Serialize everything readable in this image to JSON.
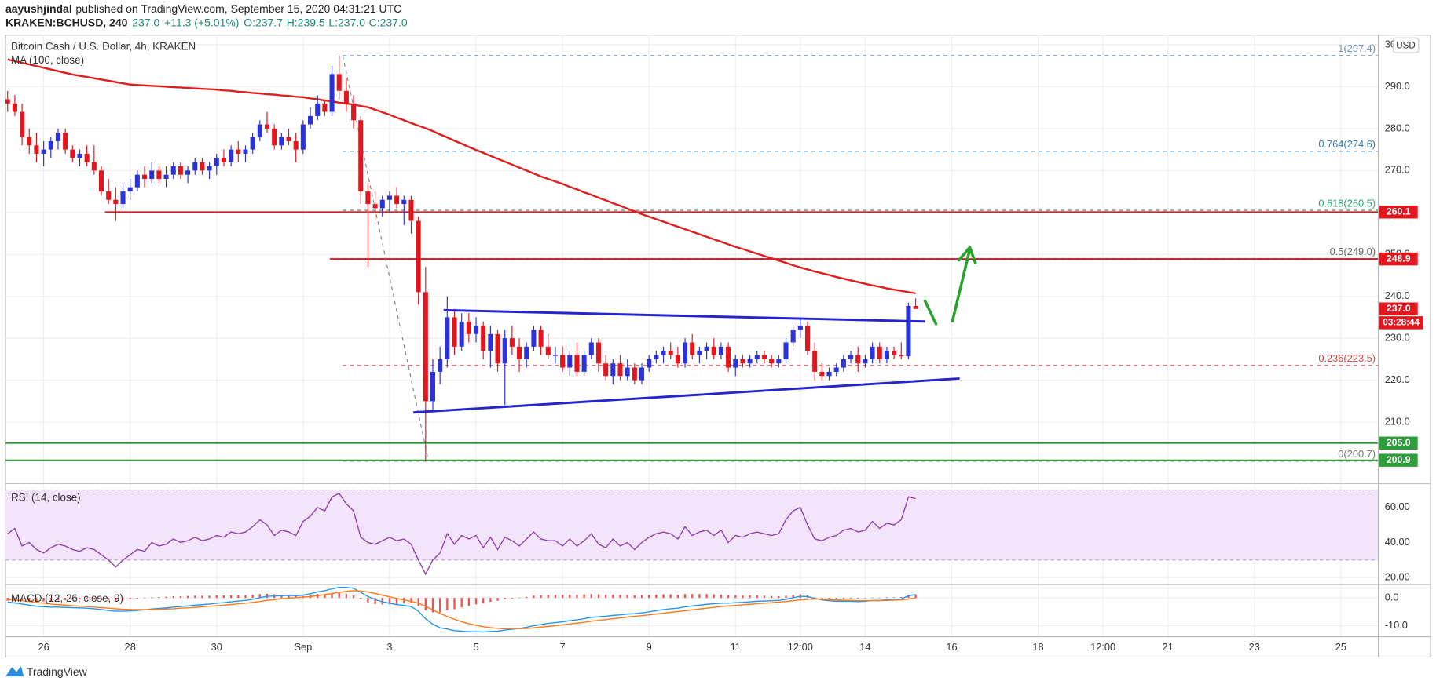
{
  "header": {
    "author": "aayushjindal",
    "published": "published on TradingView.com, September 15, 2020 04:31:21 UTC",
    "symbol": "KRAKEN:BCHUSD, 240",
    "price": "237.0",
    "change": "+11.3 (+5.01%)",
    "ohlc": [
      "O:237.7",
      "H:239.5",
      "L:237.0",
      "C:237.0"
    ]
  },
  "brand": "TradingView",
  "chart_data": {
    "type": "candlestick",
    "title": "Bitcoin Cash / U.S. Dollar, 4h, KRAKEN",
    "currency": "USD",
    "up_color": "#2b33d6",
    "down_color": "#e3161d",
    "grid": true,
    "xlim": [
      -0.3,
      190.2
    ],
    "xticks": [
      {
        "value": 5,
        "label": "26"
      },
      {
        "value": 17,
        "label": "28"
      },
      {
        "value": 29,
        "label": "30"
      },
      {
        "value": 41,
        "label": "Sep"
      },
      {
        "value": 53,
        "label": "3"
      },
      {
        "value": 65,
        "label": "5"
      },
      {
        "value": 77,
        "label": "7"
      },
      {
        "value": 89,
        "label": "9"
      },
      {
        "value": 101,
        "label": "11"
      },
      {
        "value": 110,
        "label": "12:00"
      },
      {
        "value": 119,
        "label": "14"
      },
      {
        "value": 131,
        "label": "16"
      },
      {
        "value": 143,
        "label": "18"
      },
      {
        "value": 152,
        "label": "12:00"
      },
      {
        "value": 161,
        "label": "21"
      },
      {
        "value": 173,
        "label": "23"
      },
      {
        "value": 185,
        "label": "25"
      }
    ],
    "ylim": [
      195.8,
      302.3
    ],
    "yticks": [
      {
        "value": 210,
        "label": "210.0"
      },
      {
        "value": 220,
        "label": "220.0"
      },
      {
        "value": 230,
        "label": "230.0"
      },
      {
        "value": 240,
        "label": "240.0"
      },
      {
        "value": 250,
        "label": "250.0"
      },
      {
        "value": 260,
        "label": "260.0"
      },
      {
        "value": 270,
        "label": "270.0"
      },
      {
        "value": 280,
        "label": "280.0"
      },
      {
        "value": 290,
        "label": "290.0"
      },
      {
        "value": 300,
        "label": "300.0"
      }
    ],
    "open": [
      287,
      286,
      284,
      278,
      276,
      274,
      275,
      277,
      279,
      275,
      273,
      274,
      272,
      270,
      265,
      263,
      262,
      265,
      266,
      269,
      268,
      270,
      268,
      269,
      271,
      269,
      270,
      272,
      270,
      271,
      273,
      272,
      275,
      274,
      275,
      278,
      281,
      280,
      276,
      278,
      277,
      275,
      281,
      283,
      286,
      284,
      293,
      289,
      286,
      282,
      265,
      262,
      261,
      263,
      264,
      262,
      263,
      258,
      241,
      215,
      222,
      225,
      235,
      228,
      234,
      231,
      233,
      227,
      231,
      224,
      230,
      228,
      225,
      228,
      232,
      228,
      226,
      226,
      223,
      226,
      222,
      226,
      229,
      224,
      221,
      224,
      221,
      223,
      220,
      223,
      225,
      226,
      227,
      226,
      224,
      229,
      226,
      227,
      228,
      226,
      228,
      223,
      225,
      224,
      225,
      226,
      225,
      224,
      225,
      229,
      232,
      233,
      227,
      222,
      221,
      222,
      223,
      225,
      226,
      224,
      225,
      228,
      225,
      227,
      226,
      225.7,
      237.7
    ],
    "high": [
      289,
      288,
      286,
      280,
      279,
      277,
      278,
      280,
      280,
      276,
      275,
      276,
      276,
      271,
      268,
      266,
      267,
      268,
      270,
      271,
      272,
      271,
      271,
      272,
      272,
      271,
      273,
      273,
      272,
      274,
      275,
      276,
      277,
      276,
      279,
      282,
      284,
      281,
      279,
      280,
      279,
      282,
      285,
      288,
      287,
      295,
      297.4,
      292,
      288,
      283,
      267,
      265,
      264,
      265,
      266,
      264,
      264,
      259,
      247,
      225,
      228,
      240,
      237,
      236,
      236,
      235,
      234,
      233,
      232,
      232,
      233,
      230,
      229,
      233,
      233,
      231,
      228,
      228,
      227,
      229,
      227,
      230,
      230,
      226,
      225,
      226,
      225,
      224,
      224,
      226,
      227,
      228,
      229,
      228,
      230,
      231,
      228,
      229,
      230,
      229,
      229,
      226,
      226,
      226,
      227,
      227,
      226,
      226,
      230,
      233,
      235,
      234,
      229,
      224,
      223,
      224,
      226,
      227,
      228,
      226,
      229,
      229,
      228,
      228,
      229,
      238.5,
      239.5
    ],
    "low": [
      284,
      283,
      276,
      274,
      272,
      271,
      273,
      275,
      274,
      272,
      271,
      271,
      269,
      264,
      262,
      258,
      261,
      263,
      265,
      266,
      267,
      267,
      266,
      268,
      268,
      267,
      269,
      269,
      268,
      269,
      271,
      271,
      272,
      272,
      274,
      277,
      279,
      275,
      275,
      276,
      272,
      274,
      280,
      282,
      283,
      283,
      287,
      284,
      280,
      262,
      247,
      258,
      259,
      260,
      261,
      257,
      255,
      238,
      200.7,
      213,
      219,
      223,
      226,
      227,
      229,
      229,
      225,
      223,
      222,
      214,
      226,
      222,
      223,
      227,
      226,
      225,
      224,
      222,
      221,
      221,
      221,
      225,
      222,
      220,
      219,
      220,
      220,
      219,
      219,
      222,
      224,
      224,
      225,
      223,
      223,
      225,
      224,
      225,
      225,
      225,
      222,
      221,
      223,
      223,
      224,
      224,
      223,
      223,
      224,
      228,
      230,
      226,
      220,
      220,
      220,
      221,
      222,
      224,
      222,
      223,
      224,
      224,
      224,
      225,
      225,
      225,
      237
    ],
    "close": [
      286,
      284,
      278,
      276,
      274,
      275,
      277,
      279,
      275,
      273,
      274,
      272,
      270,
      265,
      263,
      262,
      265,
      266,
      269,
      268,
      270,
      268,
      269,
      271,
      269,
      270,
      272,
      270,
      271,
      273,
      272,
      275,
      274,
      275,
      278,
      281,
      280,
      276,
      278,
      277,
      275,
      281,
      283,
      286,
      284,
      293,
      289,
      286,
      282,
      265,
      262,
      261,
      263,
      264,
      262,
      263,
      258,
      241,
      215,
      222,
      225,
      235,
      228,
      234,
      231,
      233,
      227,
      231,
      224,
      230,
      228,
      225,
      228,
      232,
      228,
      226,
      226,
      223,
      226,
      222,
      226,
      229,
      224,
      221,
      224,
      221,
      223,
      220,
      223,
      225,
      226,
      227,
      226,
      224,
      229,
      226,
      227,
      228,
      226,
      228,
      223,
      225,
      224,
      225,
      226,
      225,
      224,
      225,
      229,
      232,
      233,
      227,
      222,
      221,
      222,
      223,
      225,
      226,
      224,
      225,
      228,
      225,
      227,
      226,
      225.7,
      237.7,
      237
    ],
    "ma": {
      "name": "MA (100, close)",
      "color": "#e21b1b",
      "values": [
        296.5,
        296.1,
        295.7,
        295.3,
        294.9,
        294.5,
        294.1,
        293.7,
        293.3,
        292.9,
        292.6,
        292.3,
        292.0,
        291.7,
        291.4,
        291.1,
        290.8,
        290.5,
        290.4,
        290.3,
        290.2,
        290.1,
        290.0,
        289.9,
        289.8,
        289.7,
        289.6,
        289.5,
        289.4,
        289.3,
        289.1,
        289.0,
        288.8,
        288.7,
        288.5,
        288.4,
        288.2,
        288.1,
        287.9,
        287.8,
        287.6,
        287.5,
        287.2,
        287.0,
        286.7,
        286.5,
        286.2,
        286.0,
        285.7,
        285.4,
        285.1,
        284.5,
        283.9,
        283.3,
        282.6,
        282.0,
        281.3,
        280.7,
        280.1,
        279.4,
        278.6,
        277.9,
        277.1,
        276.4,
        275.6,
        274.9,
        274.2,
        273.5,
        272.8,
        272.1,
        271.4,
        270.7,
        270.0,
        269.3,
        268.6,
        268.0,
        267.4,
        266.8,
        266.1,
        265.5,
        264.8,
        264.2,
        263.5,
        262.9,
        262.2,
        261.6,
        260.9,
        260.3,
        259.6,
        259.0,
        258.4,
        257.8,
        257.2,
        256.6,
        256.0,
        255.4,
        254.8,
        254.2,
        253.6,
        253.0,
        252.4,
        251.8,
        251.3,
        250.7,
        250.2,
        249.6,
        249.1,
        248.5,
        248.0,
        247.4,
        246.9,
        246.4,
        245.9,
        245.5,
        245.1,
        244.6,
        244.2,
        243.8,
        243.4,
        243.0,
        242.6,
        242.3,
        241.9,
        241.6,
        241.3,
        241.0,
        240.7
      ]
    },
    "levels": [
      {
        "value": 260.1,
        "color": "#e3161d",
        "x0": 13.5
      },
      {
        "value": 248.9,
        "color": "#e3161d",
        "x0": 44.7
      },
      {
        "value": 205,
        "label": "205.0",
        "color": "#2e9e3a"
      },
      {
        "value": 200.9,
        "color": "#2e9e3a"
      }
    ],
    "last_price": {
      "value": 237,
      "label": "237.0",
      "countdown": "03:28:44",
      "color": "#e3161d"
    },
    "fib": {
      "x0": 46.5,
      "anchor": [
        46.5,
        58.4
      ],
      "levels": [
        {
          "value": 297.4,
          "label": "1(297.4)",
          "color": "#6f8fb5"
        },
        {
          "value": 274.6,
          "label": "0.764(274.6)",
          "color": "#2e7dba"
        },
        {
          "value": 260.5,
          "label": "0.618(260.5)",
          "color": "#2e9e73"
        },
        {
          "value": 249,
          "label": "0.5(249.0)",
          "color": "#666666"
        },
        {
          "value": 223.5,
          "label": "0.236(223.5)",
          "color": "#d64545"
        },
        {
          "value": 200.7,
          "label": "0(200.7)",
          "color": "#777777"
        }
      ]
    },
    "trendlines": [
      {
        "x": [
          60.5,
          127.3
        ],
        "y": [
          236.7,
          234.0
        ],
        "color": "#2525d0"
      },
      {
        "x": [
          56.3,
          132.1
        ],
        "y": [
          212.3,
          220.4
        ],
        "color": "#2525d0"
      }
    ],
    "rsi": {
      "name": "RSI (14, close)",
      "color": "#8e44ad",
      "band_color": "#f3e3fb",
      "ylim": [
        16.8,
        72.6
      ],
      "band": [
        30,
        70
      ],
      "yticks": [
        {
          "value": 20,
          "label": "20.00"
        },
        {
          "value": 40,
          "label": "40.00"
        },
        {
          "value": 60,
          "label": "60.00"
        }
      ],
      "values": [
        45,
        48,
        38,
        40,
        36,
        34,
        37,
        39,
        38,
        36,
        35,
        37,
        36,
        33,
        30,
        26,
        30,
        33,
        36,
        35,
        40,
        38,
        39,
        42,
        40,
        41,
        43,
        41,
        42,
        44,
        43,
        46,
        45,
        46,
        49,
        53,
        50,
        44,
        47,
        46,
        44,
        52,
        55,
        60,
        58,
        66,
        68,
        62,
        58,
        43,
        40,
        39,
        41,
        43,
        41,
        42,
        39,
        30,
        22,
        30,
        34,
        45,
        39,
        44,
        42,
        44,
        37,
        43,
        36,
        43,
        41,
        38,
        42,
        46,
        42,
        41,
        41,
        38,
        42,
        38,
        41,
        45,
        39,
        37,
        42,
        38,
        40,
        36,
        40,
        43,
        45,
        46,
        45,
        42,
        49,
        44,
        46,
        47,
        44,
        47,
        40,
        44,
        43,
        45,
        46,
        45,
        44,
        45,
        53,
        58,
        60,
        50,
        42,
        41,
        43,
        44,
        47,
        48,
        46,
        47,
        52,
        48,
        51,
        50,
        53,
        66,
        65
      ]
    },
    "macd": {
      "name": "MACD (12, 26, close, 9)",
      "macd_color": "#2196f3",
      "signal_color": "#ff7a1a",
      "histogram_color": "#ef5350",
      "ylim": [
        -14,
        4.33
      ],
      "yticks": [
        {
          "value": 0,
          "label": "0.0"
        },
        {
          "value": -10,
          "label": "-10.0"
        }
      ],
      "macd": [
        -1.5,
        -1.8,
        -2.2,
        -2.6,
        -3.0,
        -3.2,
        -3.3,
        -3.3,
        -3.4,
        -3.5,
        -3.6,
        -3.7,
        -3.9,
        -4.2,
        -4.5,
        -4.8,
        -4.8,
        -4.7,
        -4.5,
        -4.3,
        -4.0,
        -3.8,
        -3.6,
        -3.3,
        -3.1,
        -2.9,
        -2.6,
        -2.4,
        -2.2,
        -1.9,
        -1.7,
        -1.4,
        -1.1,
        -0.9,
        -0.5,
        0.1,
        0.6,
        0.7,
        0.8,
        0.9,
        0.8,
        1.0,
        1.5,
        2.2,
        2.6,
        3.3,
        3.8,
        3.8,
        3.5,
        2.0,
        0.5,
        -0.6,
        -1.4,
        -1.9,
        -2.4,
        -2.7,
        -3.1,
        -4.8,
        -7.5,
        -9.5,
        -10.8,
        -11.2,
        -11.8,
        -12.0,
        -12.2,
        -12.2,
        -12.3,
        -12.1,
        -12.0,
        -11.6,
        -11.3,
        -11.0,
        -10.6,
        -10.0,
        -9.6,
        -9.2,
        -8.9,
        -8.6,
        -8.2,
        -7.9,
        -7.5,
        -7.0,
        -6.8,
        -6.6,
        -6.3,
        -6.1,
        -5.8,
        -5.7,
        -5.4,
        -5.0,
        -4.6,
        -4.2,
        -3.9,
        -3.7,
        -3.2,
        -2.9,
        -2.6,
        -2.3,
        -2.1,
        -1.9,
        -1.9,
        -1.7,
        -1.6,
        -1.4,
        -1.2,
        -1.1,
        -1.0,
        -0.9,
        -0.5,
        0.1,
        0.6,
        0.5,
        -0.2,
        -0.7,
        -1.0,
        -1.2,
        -1.2,
        -1.2,
        -1.3,
        -1.2,
        -0.9,
        -0.9,
        -0.7,
        -0.6,
        -0.4,
        0.8,
        1.2
      ],
      "signal": [
        -0.5,
        -0.7,
        -1.0,
        -1.3,
        -1.6,
        -1.9,
        -2.2,
        -2.4,
        -2.6,
        -2.8,
        -3.0,
        -3.1,
        -3.3,
        -3.5,
        -3.7,
        -3.9,
        -4.1,
        -4.2,
        -4.2,
        -4.2,
        -4.2,
        -4.1,
        -4.0,
        -3.9,
        -3.7,
        -3.6,
        -3.4,
        -3.2,
        -3.0,
        -2.8,
        -2.6,
        -2.4,
        -2.1,
        -1.9,
        -1.6,
        -1.3,
        -0.9,
        -0.6,
        -0.3,
        -0.1,
        0.1,
        0.3,
        0.5,
        0.8,
        1.2,
        1.6,
        2.0,
        2.4,
        2.6,
        2.5,
        2.1,
        1.6,
        1.0,
        0.4,
        -0.2,
        -0.7,
        -1.2,
        -1.9,
        -3.0,
        -4.3,
        -5.6,
        -6.7,
        -7.7,
        -8.6,
        -9.3,
        -9.9,
        -10.4,
        -10.7,
        -11.0,
        -11.1,
        -11.1,
        -11.1,
        -11.0,
        -10.8,
        -10.5,
        -10.3,
        -10.0,
        -9.7,
        -9.4,
        -9.1,
        -8.8,
        -8.4,
        -8.1,
        -7.8,
        -7.5,
        -7.2,
        -6.9,
        -6.6,
        -6.4,
        -6.1,
        -5.8,
        -5.5,
        -5.2,
        -4.9,
        -4.6,
        -4.3,
        -4.0,
        -3.7,
        -3.4,
        -3.1,
        -2.9,
        -2.7,
        -2.5,
        -2.3,
        -2.1,
        -1.9,
        -1.7,
        -1.5,
        -1.3,
        -1.0,
        -0.7,
        -0.5,
        -0.4,
        -0.5,
        -0.6,
        -0.7,
        -0.8,
        -0.9,
        -1.0,
        -1.0,
        -1.0,
        -1.0,
        -0.9,
        -0.8,
        -0.7,
        -0.4,
        -0.1
      ],
      "histogram": [
        -1.0,
        -1.1,
        -1.2,
        -1.3,
        -1.4,
        -1.3,
        -1.1,
        -0.9,
        -0.8,
        -0.7,
        -0.6,
        -0.6,
        -0.6,
        -0.7,
        -0.8,
        -0.9,
        -0.7,
        -0.5,
        -0.3,
        -0.1,
        0.2,
        0.3,
        0.4,
        0.6,
        0.6,
        0.7,
        0.8,
        0.8,
        0.8,
        0.9,
        0.9,
        1.0,
        1.0,
        1.0,
        1.1,
        1.4,
        1.5,
        1.3,
        1.1,
        1.0,
        0.7,
        0.7,
        1.0,
        1.4,
        1.4,
        1.7,
        1.8,
        1.4,
        0.9,
        -0.5,
        -1.6,
        -2.2,
        -2.4,
        -2.3,
        -2.2,
        -2.0,
        -1.9,
        -2.9,
        -4.5,
        -5.2,
        -5.2,
        -4.5,
        -4.1,
        -3.4,
        -2.9,
        -2.3,
        -1.9,
        -1.4,
        -1.0,
        -0.5,
        -0.2,
        0.1,
        0.4,
        0.8,
        0.9,
        1.1,
        1.1,
        1.1,
        1.2,
        1.2,
        1.3,
        1.4,
        1.3,
        1.2,
        1.2,
        1.1,
        1.1,
        0.9,
        1.0,
        1.1,
        1.2,
        1.3,
        1.3,
        1.2,
        1.4,
        1.4,
        1.4,
        1.4,
        1.3,
        1.2,
        1.0,
        1.0,
        0.9,
        0.9,
        0.9,
        0.8,
        0.7,
        0.6,
        0.8,
        1.1,
        1.3,
        1.0,
        0.2,
        -0.2,
        -0.4,
        -0.5,
        -0.4,
        -0.3,
        -0.3,
        -0.2,
        0.1,
        0.1,
        0.2,
        0.2,
        0.3,
        1.2,
        1.3
      ]
    }
  }
}
